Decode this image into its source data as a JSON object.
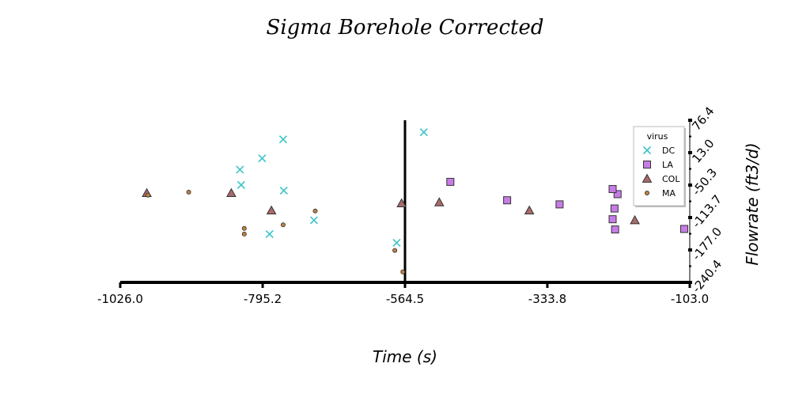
{
  "chart_data": {
    "type": "scatter",
    "title": "Sigma Borehole Corrected",
    "xlabel": "Time (s)",
    "ylabel": "Flowrate (ft3/d)",
    "xlim": [
      -1026.0,
      -103.0
    ],
    "ylim": [
      -240.4,
      76.4
    ],
    "x_ticks": [
      -1026.0,
      -795.2,
      -564.5,
      -333.8,
      -103.0
    ],
    "x_tick_labels": [
      "-1026.0",
      "-795.2",
      "-564.5",
      "-333.8",
      "-103.0"
    ],
    "y_ticks": [
      76.4,
      13.0,
      -50.3,
      -113.7,
      -177.0,
      -240.4
    ],
    "y_tick_labels": [
      "76.4",
      "13.0",
      "-50.3",
      "-113.7",
      "-177.0",
      "-240.4"
    ],
    "vline_x": -564.5,
    "grid": false,
    "legend": {
      "title": "virus",
      "position": "top-right"
    },
    "series": [
      {
        "name": "DC",
        "marker": "x",
        "color": "#3cc4c8",
        "points": [
          [
            -796,
            2
          ],
          [
            -761,
            -61
          ],
          [
            -832,
            -20
          ],
          [
            -830,
            -50
          ],
          [
            -762,
            39
          ],
          [
            -784,
            -146
          ],
          [
            -712,
            -119
          ],
          [
            -578,
            -163
          ],
          [
            -534,
            53
          ]
        ]
      },
      {
        "name": "LA",
        "marker": "square",
        "color": "#c77ce6",
        "points": [
          [
            -491,
            -44
          ],
          [
            -314,
            -88
          ],
          [
            -228,
            -117
          ],
          [
            -225,
            -96
          ],
          [
            -224,
            -137
          ],
          [
            -220,
            -68
          ],
          [
            -399,
            -80
          ],
          [
            -228,
            -58
          ],
          [
            -112,
            -136
          ]
        ]
      },
      {
        "name": "COL",
        "marker": "triangle",
        "color": "#a86a6a",
        "points": [
          [
            -983,
            -66
          ],
          [
            -846,
            -66
          ],
          [
            -781,
            -100
          ],
          [
            -570,
            -86
          ],
          [
            -509,
            -84
          ],
          [
            -363,
            -100
          ],
          [
            -192,
            -119
          ]
        ]
      },
      {
        "name": "MA",
        "marker": "circle",
        "color": "#c08040",
        "points": [
          [
            -981,
            -70
          ],
          [
            -915,
            -64
          ],
          [
            -825,
            -135
          ],
          [
            -825,
            -146
          ],
          [
            -762,
            -128
          ],
          [
            -710,
            -101
          ],
          [
            -581,
            -178
          ],
          [
            -568,
            -220
          ]
        ]
      }
    ]
  }
}
